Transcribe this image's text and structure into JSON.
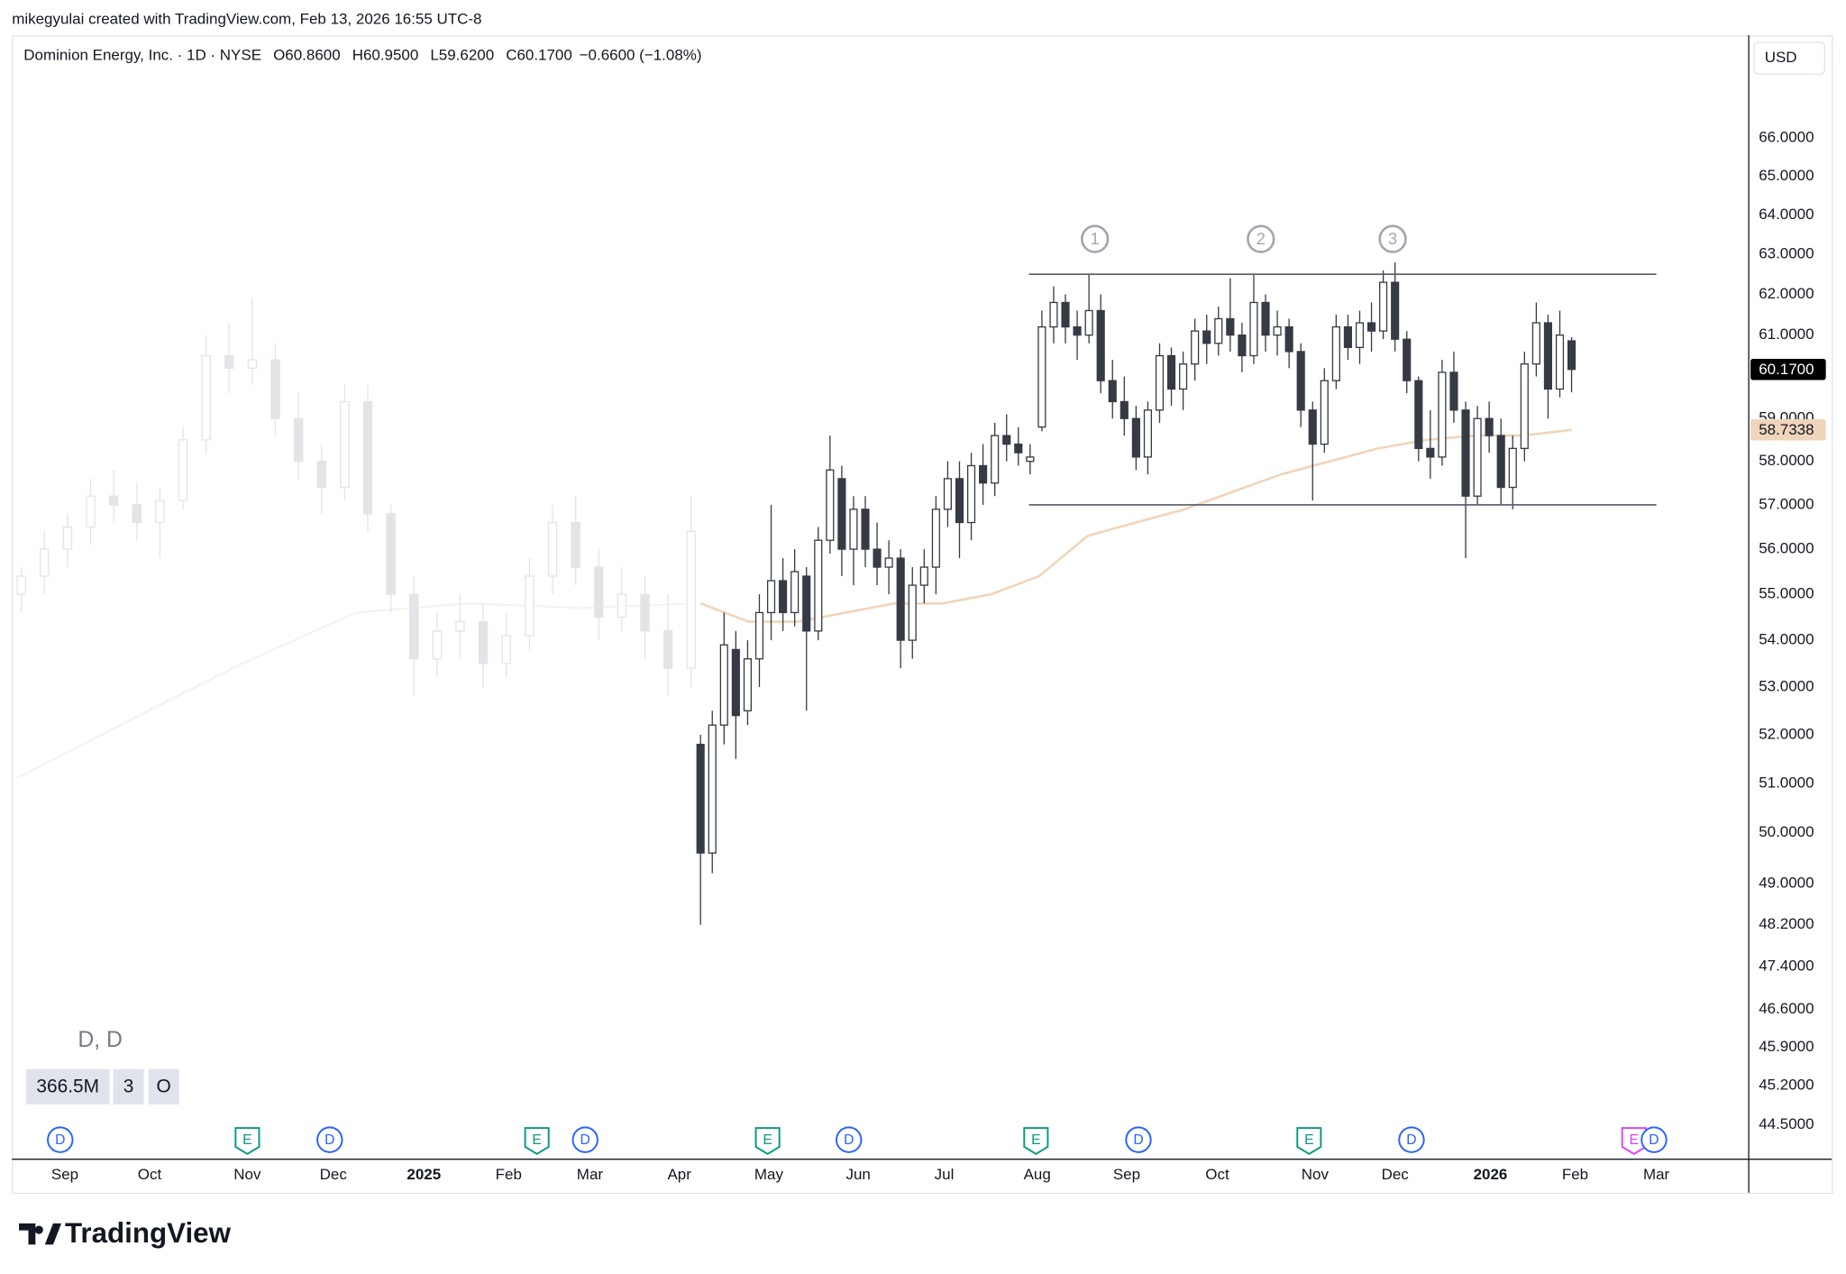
{
  "header": "mikegyulai created with TradingView.com, Feb 13, 2026 16:55 UTC-8",
  "logo": "TradingView",
  "chart_data": {
    "type": "candlestick",
    "title": "Dominion Energy, Inc. · 1D · NYSE",
    "legend_values": [
      {
        "key": "O",
        "value": "60.8600"
      },
      {
        "key": "H",
        "value": "60.9500"
      },
      {
        "key": "L",
        "value": "59.6200"
      },
      {
        "key": "C",
        "value": "60.1700"
      }
    ],
    "change": "−0.6600 (−1.08%)",
    "currency": "USD",
    "log_scale": true,
    "grid": false,
    "ylim": [
      43.9,
      68.76
    ],
    "yticks": [
      {
        "value": 66,
        "label": "66.0000"
      },
      {
        "value": 65,
        "label": "65.0000"
      },
      {
        "value": 64,
        "label": "64.0000"
      },
      {
        "value": 63,
        "label": "63.0000"
      },
      {
        "value": 62,
        "label": "62.0000"
      },
      {
        "value": 61,
        "label": "61.0000"
      },
      {
        "value": 59,
        "label": "59.0000"
      },
      {
        "value": 58,
        "label": "58.0000"
      },
      {
        "value": 57,
        "label": "57.0000"
      },
      {
        "value": 56,
        "label": "56.0000"
      },
      {
        "value": 55,
        "label": "55.0000"
      },
      {
        "value": 54,
        "label": "54.0000"
      },
      {
        "value": 53,
        "label": "53.0000"
      },
      {
        "value": 52,
        "label": "52.0000"
      },
      {
        "value": 51,
        "label": "51.0000"
      },
      {
        "value": 50,
        "label": "50.0000"
      },
      {
        "value": 49,
        "label": "49.0000"
      },
      {
        "value": 48.2,
        "label": "48.2000"
      },
      {
        "value": 47.4,
        "label": "47.4000"
      },
      {
        "value": 46.6,
        "label": "46.6000"
      },
      {
        "value": 45.9,
        "label": "45.9000"
      },
      {
        "value": 45.2,
        "label": "45.2000"
      },
      {
        "value": 44.5,
        "label": "44.5000"
      }
    ],
    "categories": [
      "Sep",
      "Oct",
      "Nov",
      "Dec",
      "2025",
      "Feb",
      "Mar",
      "Apr",
      "May",
      "Jun",
      "Jul",
      "Aug",
      "Sep",
      "Oct",
      "Nov",
      "Dec",
      "2026",
      "Feb",
      "Mar"
    ],
    "candles": {
      "up_color": "#ffffff",
      "down_color": "#363a45",
      "border_color": "#363a45",
      "ohlc": [
        [
          51.8,
          52.0,
          48.2,
          49.6
        ],
        [
          49.6,
          52.5,
          49.2,
          52.2
        ],
        [
          52.2,
          54.6,
          51.8,
          53.9
        ],
        [
          53.8,
          54.2,
          51.5,
          52.4
        ],
        [
          52.5,
          54.0,
          52.2,
          53.6
        ],
        [
          53.6,
          55.0,
          53.0,
          54.6
        ],
        [
          54.6,
          57.0,
          54.0,
          55.3
        ],
        [
          55.3,
          55.8,
          54.2,
          54.6
        ],
        [
          54.6,
          56.0,
          54.3,
          55.5
        ],
        [
          55.4,
          55.6,
          52.5,
          54.2
        ],
        [
          54.2,
          56.5,
          54.0,
          56.2
        ],
        [
          56.2,
          58.6,
          55.9,
          57.8
        ],
        [
          57.6,
          57.9,
          55.4,
          56.0
        ],
        [
          56.0,
          57.2,
          55.2,
          56.9
        ],
        [
          56.9,
          57.2,
          55.6,
          56.0
        ],
        [
          56.0,
          56.6,
          55.2,
          55.6
        ],
        [
          55.6,
          56.2,
          55.0,
          55.8
        ],
        [
          55.8,
          56.0,
          53.4,
          54.0
        ],
        [
          54.0,
          55.6,
          53.6,
          55.2
        ],
        [
          55.2,
          56.0,
          54.8,
          55.6
        ],
        [
          55.6,
          57.2,
          55.0,
          56.9
        ],
        [
          56.9,
          58.0,
          56.5,
          57.6
        ],
        [
          57.6,
          58.0,
          55.8,
          56.6
        ],
        [
          56.6,
          58.2,
          56.2,
          57.9
        ],
        [
          57.9,
          58.4,
          57.0,
          57.5
        ],
        [
          57.5,
          58.9,
          57.2,
          58.6
        ],
        [
          58.6,
          59.1,
          58.0,
          58.4
        ],
        [
          58.4,
          58.8,
          57.9,
          58.2
        ],
        [
          58.0,
          58.4,
          57.7,
          58.1
        ],
        [
          58.8,
          61.6,
          58.7,
          61.2
        ],
        [
          61.2,
          62.2,
          60.8,
          61.8
        ],
        [
          61.8,
          62.0,
          60.8,
          61.2
        ],
        [
          61.2,
          61.6,
          60.4,
          61.0
        ],
        [
          61.0,
          62.5,
          60.8,
          61.6
        ],
        [
          61.6,
          62.0,
          59.6,
          59.9
        ],
        [
          59.9,
          60.4,
          59.0,
          59.4
        ],
        [
          59.4,
          60.0,
          58.6,
          59.0
        ],
        [
          59.0,
          59.3,
          57.8,
          58.1
        ],
        [
          58.1,
          59.4,
          57.7,
          59.2
        ],
        [
          59.2,
          60.8,
          58.9,
          60.5
        ],
        [
          60.5,
          60.7,
          59.3,
          59.7
        ],
        [
          59.7,
          60.6,
          59.2,
          60.3
        ],
        [
          60.3,
          61.4,
          59.9,
          61.1
        ],
        [
          61.1,
          61.5,
          60.3,
          60.8
        ],
        [
          60.8,
          61.7,
          60.5,
          61.4
        ],
        [
          61.4,
          62.4,
          60.6,
          61.0
        ],
        [
          61.0,
          61.3,
          60.1,
          60.5
        ],
        [
          60.5,
          62.5,
          60.3,
          61.8
        ],
        [
          61.8,
          62.0,
          60.6,
          61.0
        ],
        [
          61.0,
          61.6,
          60.5,
          61.2
        ],
        [
          61.2,
          61.4,
          60.2,
          60.6
        ],
        [
          60.6,
          60.8,
          58.8,
          59.2
        ],
        [
          59.2,
          59.4,
          57.1,
          58.4
        ],
        [
          58.4,
          60.2,
          58.2,
          59.9
        ],
        [
          59.9,
          61.5,
          59.7,
          61.2
        ],
        [
          61.2,
          61.5,
          60.4,
          60.7
        ],
        [
          60.7,
          61.6,
          60.3,
          61.3
        ],
        [
          61.3,
          61.8,
          60.6,
          61.1
        ],
        [
          61.1,
          62.6,
          60.9,
          62.3
        ],
        [
          62.3,
          62.8,
          60.6,
          60.9
        ],
        [
          60.9,
          61.1,
          59.6,
          59.9
        ],
        [
          59.9,
          60.0,
          58.0,
          58.3
        ],
        [
          58.3,
          59.2,
          57.6,
          58.1
        ],
        [
          58.1,
          60.4,
          57.9,
          60.1
        ],
        [
          60.1,
          60.6,
          58.9,
          59.2
        ],
        [
          59.2,
          59.4,
          55.8,
          57.2
        ],
        [
          57.2,
          59.3,
          57.0,
          59.0
        ],
        [
          59.0,
          59.4,
          58.2,
          58.6
        ],
        [
          58.6,
          59.0,
          57.0,
          57.4
        ],
        [
          57.4,
          58.6,
          56.9,
          58.3
        ],
        [
          58.3,
          60.6,
          58.0,
          60.3
        ],
        [
          60.3,
          61.8,
          60.0,
          61.3
        ],
        [
          61.3,
          61.5,
          59.0,
          59.7
        ],
        [
          59.7,
          61.6,
          59.5,
          61.0
        ],
        [
          60.86,
          60.95,
          59.62,
          60.17
        ]
      ]
    },
    "faded_candles": {
      "color": "#e3e4e8",
      "ohlc": [
        [
          55.0,
          55.6,
          54.6,
          55.4
        ],
        [
          55.4,
          56.4,
          55.0,
          56.0
        ],
        [
          56.0,
          56.8,
          55.6,
          56.5
        ],
        [
          56.5,
          57.6,
          56.1,
          57.2
        ],
        [
          57.2,
          57.8,
          56.6,
          57.0
        ],
        [
          57.0,
          57.5,
          56.2,
          56.6
        ],
        [
          56.6,
          57.4,
          55.8,
          57.1
        ],
        [
          57.1,
          58.8,
          56.9,
          58.5
        ],
        [
          58.5,
          61.0,
          58.2,
          60.5
        ],
        [
          60.5,
          61.3,
          59.6,
          60.2
        ],
        [
          60.2,
          61.9,
          59.8,
          60.4
        ],
        [
          60.4,
          60.8,
          58.6,
          59.0
        ],
        [
          59.0,
          59.6,
          57.6,
          58.0
        ],
        [
          58.0,
          58.4,
          56.8,
          57.4
        ],
        [
          57.4,
          59.8,
          57.1,
          59.4
        ],
        [
          59.4,
          59.8,
          56.4,
          56.8
        ],
        [
          56.8,
          57.0,
          54.6,
          55.0
        ],
        [
          55.0,
          55.4,
          52.8,
          53.6
        ],
        [
          53.6,
          54.6,
          53.2,
          54.2
        ],
        [
          54.2,
          55.0,
          53.6,
          54.4
        ],
        [
          54.4,
          54.8,
          53.0,
          53.5
        ],
        [
          53.5,
          54.6,
          53.2,
          54.1
        ],
        [
          54.1,
          55.8,
          53.8,
          55.4
        ],
        [
          55.4,
          57.0,
          55.0,
          56.6
        ],
        [
          56.6,
          57.2,
          55.2,
          55.6
        ],
        [
          55.6,
          56.0,
          54.0,
          54.5
        ],
        [
          54.5,
          55.6,
          54.2,
          55.0
        ],
        [
          55.0,
          55.4,
          53.6,
          54.2
        ],
        [
          54.2,
          55.0,
          52.8,
          53.4
        ],
        [
          53.4,
          57.2,
          53.0,
          56.4
        ]
      ]
    },
    "moving_average": {
      "color": "#efd5bb",
      "values": [
        54.8,
        54.4,
        54.4,
        54.6,
        54.8,
        54.8,
        55.0,
        55.4,
        56.3,
        56.6,
        56.9,
        57.3,
        57.7,
        58.0,
        58.3,
        58.5,
        58.6,
        58.6,
        58.7338
      ]
    },
    "faded_moving_average": {
      "color": "#f6f1ec",
      "values": [
        51.1,
        52.3,
        53.5,
        54.6,
        54.8,
        54.7,
        54.8
      ]
    },
    "last_price": {
      "value": 60.17,
      "label": "60.1700"
    },
    "ma_last": {
      "value": 58.7338,
      "label": "58.7338"
    },
    "range_lines": [
      62.5,
      57.0
    ],
    "annotations": [
      "1",
      "2",
      "3"
    ],
    "events": [
      {
        "label": "D",
        "color": "#2962ff"
      },
      {
        "label": "E",
        "color": "#089981"
      },
      {
        "label": "D",
        "color": "#2962ff"
      },
      {
        "label": "E",
        "color": "#089981"
      },
      {
        "label": "D",
        "color": "#2962ff"
      },
      {
        "label": "E",
        "color": "#089981"
      },
      {
        "label": "D",
        "color": "#2962ff"
      },
      {
        "label": "E",
        "color": "#089981"
      },
      {
        "label": "D",
        "color": "#2962ff"
      },
      {
        "label": "E",
        "color": "#089981"
      },
      {
        "label": "D",
        "color": "#2962ff"
      },
      {
        "label": "E",
        "color": "#e040fb"
      },
      {
        "label": "D",
        "color": "#2962ff"
      }
    ],
    "symbol_label": "D, D",
    "badges": [
      "366.5M",
      "3",
      "O"
    ]
  }
}
